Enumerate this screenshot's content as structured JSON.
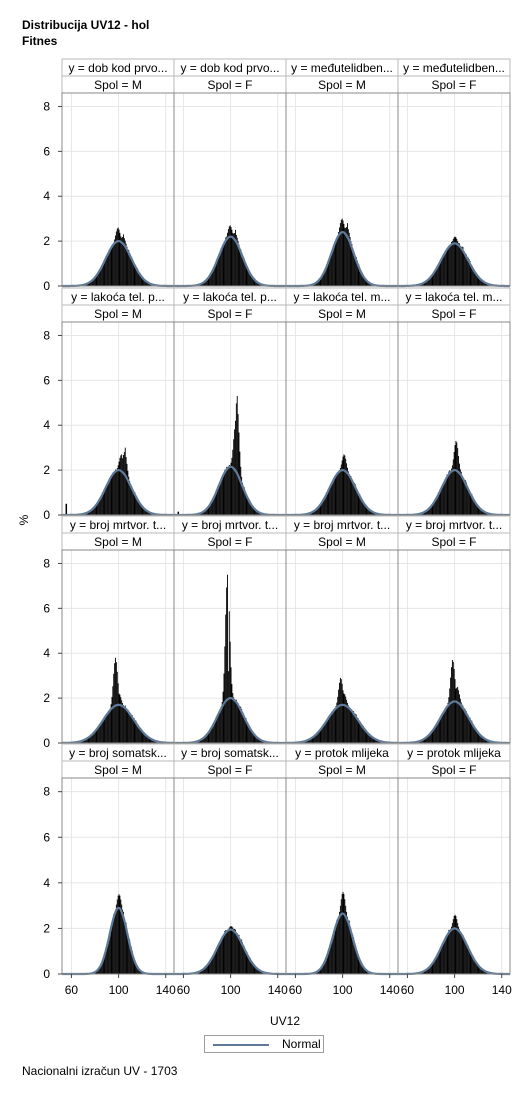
{
  "title": {
    "line1": "Distribucija UV12 - hol",
    "line2": "Fitnes"
  },
  "footer": "Nacionalni izračun UV - 1703",
  "legend": {
    "label": "Normal",
    "color": "#5f7a99"
  },
  "chart_data": {
    "type": "histogram-panel",
    "xlabel": "UV12",
    "ylabel": "%",
    "xlim": [
      52,
      147
    ],
    "xticks": [
      60,
      100,
      140
    ],
    "ylim": [
      0,
      8.6
    ],
    "yticks": [
      0,
      2,
      4,
      6,
      8
    ],
    "grid": true,
    "legend_position": "bottom",
    "bar_color": "#000000",
    "curve_color": "#5f7a99",
    "rows": [
      {
        "panels": [
          {
            "label": "y = dob kod prvo...",
            "spol": "Spol = M",
            "normal_peak": 2.0,
            "normal_sd": 11,
            "peaks": [
              [
                99,
                2.6
              ],
              [
                104,
                2.3
              ]
            ],
            "outliers": []
          },
          {
            "label": "y = dob kod prvo...",
            "spol": "Spol = F",
            "normal_peak": 2.2,
            "normal_sd": 10,
            "peaks": [
              [
                99,
                2.7
              ],
              [
                104,
                2.5
              ]
            ],
            "outliers": []
          },
          {
            "label": "y = međutelidben...",
            "spol": "Spol = M",
            "normal_peak": 2.4,
            "normal_sd": 9.5,
            "peaks": [
              [
                99,
                3.0
              ],
              [
                104,
                2.8
              ]
            ],
            "outliers": []
          },
          {
            "label": "y = međutelidben...",
            "spol": "Spol = F",
            "normal_peak": 1.9,
            "normal_sd": 11.5,
            "peaks": [
              [
                100,
                2.2
              ]
            ],
            "outliers": []
          }
        ]
      },
      {
        "panels": [
          {
            "label": "y = lakoća tel. p...",
            "spol": "Spol = M",
            "normal_peak": 2.0,
            "normal_sd": 11,
            "peaks": [
              [
                102,
                2.7
              ],
              [
                105,
                3.0
              ]
            ],
            "outliers": [
              [
                55,
                0.5
              ]
            ]
          },
          {
            "label": "y = lakoća tel. p...",
            "spol": "Spol = F",
            "normal_peak": 2.15,
            "normal_sd": 10,
            "peaks": [
              [
                104,
                4.2
              ],
              [
                105,
                5.3
              ]
            ],
            "outliers": [
              [
                55,
                0.15
              ]
            ]
          },
          {
            "label": "y = lakoća tel. m...",
            "spol": "Spol = M",
            "normal_peak": 2.0,
            "normal_sd": 11,
            "peaks": [
              [
                101,
                2.7
              ]
            ],
            "outliers": []
          },
          {
            "label": "y = lakoća tel. m...",
            "spol": "Spol = F",
            "normal_peak": 2.0,
            "normal_sd": 11,
            "peaks": [
              [
                101,
                3.3
              ]
            ],
            "outliers": []
          }
        ]
      },
      {
        "panels": [
          {
            "label": "y = broj mrtvor. t...",
            "spol": "Spol = M",
            "normal_peak": 1.7,
            "normal_sd": 13,
            "peaks": [
              [
                97,
                3.8
              ],
              [
                100,
                2.2
              ]
            ],
            "outliers": []
          },
          {
            "label": "y = broj mrtvor. t...",
            "spol": "Spol = F",
            "normal_peak": 2.0,
            "normal_sd": 11,
            "peaks": [
              [
                97,
                7.5
              ],
              [
                98,
                3.2
              ]
            ],
            "outliers": []
          },
          {
            "label": "y = broj mrtvor. t...",
            "spol": "Spol = M",
            "normal_peak": 1.7,
            "normal_sd": 13,
            "peaks": [
              [
                98,
                2.9
              ],
              [
                101,
                2.2
              ]
            ],
            "outliers": []
          },
          {
            "label": "y = broj mrtvor. t...",
            "spol": "Spol = F",
            "normal_peak": 1.85,
            "normal_sd": 12,
            "peaks": [
              [
                98,
                3.7
              ],
              [
                102,
                2.5
              ]
            ],
            "outliers": []
          }
        ]
      },
      {
        "panels": [
          {
            "label": "y = broj somatsk...",
            "spol": "Spol = M",
            "normal_peak": 2.9,
            "normal_sd": 7.5,
            "peaks": [
              [
                100,
                3.5
              ]
            ],
            "outliers": []
          },
          {
            "label": "y = broj somatsk...",
            "spol": "Spol = F",
            "normal_peak": 1.95,
            "normal_sd": 11,
            "peaks": [
              [
                100,
                2.1
              ]
            ],
            "outliers": []
          },
          {
            "label": "y = protok mlijeka",
            "spol": "Spol = M",
            "normal_peak": 2.65,
            "normal_sd": 8.5,
            "peaks": [
              [
                100,
                3.6
              ]
            ],
            "outliers": []
          },
          {
            "label": "y = protok mlijeka",
            "spol": "Spol = F",
            "normal_peak": 2.0,
            "normal_sd": 11,
            "peaks": [
              [
                100,
                2.6
              ]
            ],
            "outliers": []
          }
        ]
      }
    ]
  }
}
